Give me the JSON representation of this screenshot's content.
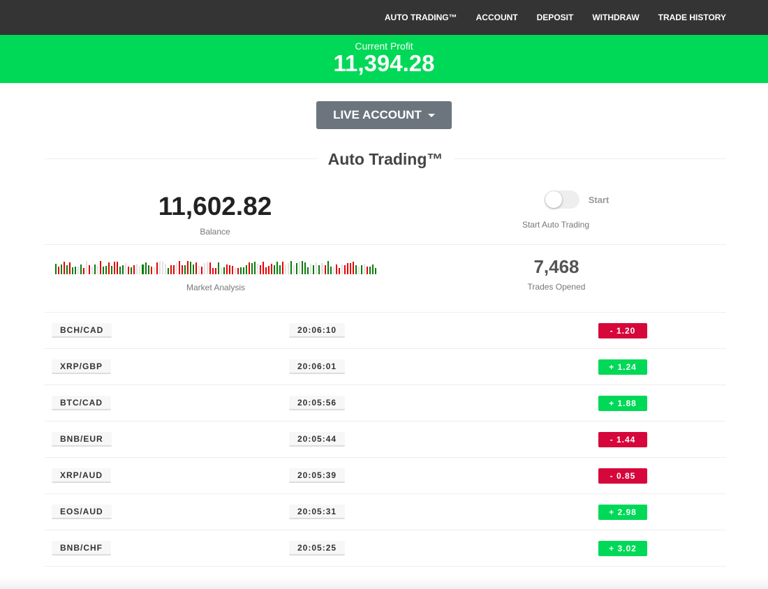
{
  "nav": {
    "items": [
      "AUTO TRADING™",
      "ACCOUNT",
      "DEPOSIT",
      "WITHDRAW",
      "TRADE HISTORY"
    ]
  },
  "profit": {
    "label": "Current Profit",
    "value": "11,394.28"
  },
  "account_button": "LIVE ACCOUNT",
  "section_title": "Auto Trading™",
  "balance": {
    "value": "11,602.82",
    "label": "Balance"
  },
  "toggle": {
    "label": "Start",
    "caption": "Start Auto Trading",
    "on": false
  },
  "market": {
    "label": "Market Analysis"
  },
  "trades_opened": {
    "value": "7,468",
    "label": "Trades Opened"
  },
  "colors": {
    "profit": "#00d957",
    "loss": "#d6073b",
    "nav": "#343434"
  },
  "trades": [
    {
      "pair": "BCH/CAD",
      "time": "20:06:10",
      "change": "-  1.20",
      "dir": "neg"
    },
    {
      "pair": "XRP/GBP",
      "time": "20:06:01",
      "change": "+  1.24",
      "dir": "pos"
    },
    {
      "pair": "BTC/CAD",
      "time": "20:05:56",
      "change": "+  1.88",
      "dir": "pos"
    },
    {
      "pair": "BNB/EUR",
      "time": "20:05:44",
      "change": "-  1.44",
      "dir": "neg"
    },
    {
      "pair": "XRP/AUD",
      "time": "20:05:39",
      "change": "-  0.85",
      "dir": "neg"
    },
    {
      "pair": "EOS/AUD",
      "time": "20:05:31",
      "change": "+  2.98",
      "dir": "pos"
    },
    {
      "pair": "BNB/CHF",
      "time": "20:05:25",
      "change": "+  3.02",
      "dir": "pos"
    }
  ]
}
